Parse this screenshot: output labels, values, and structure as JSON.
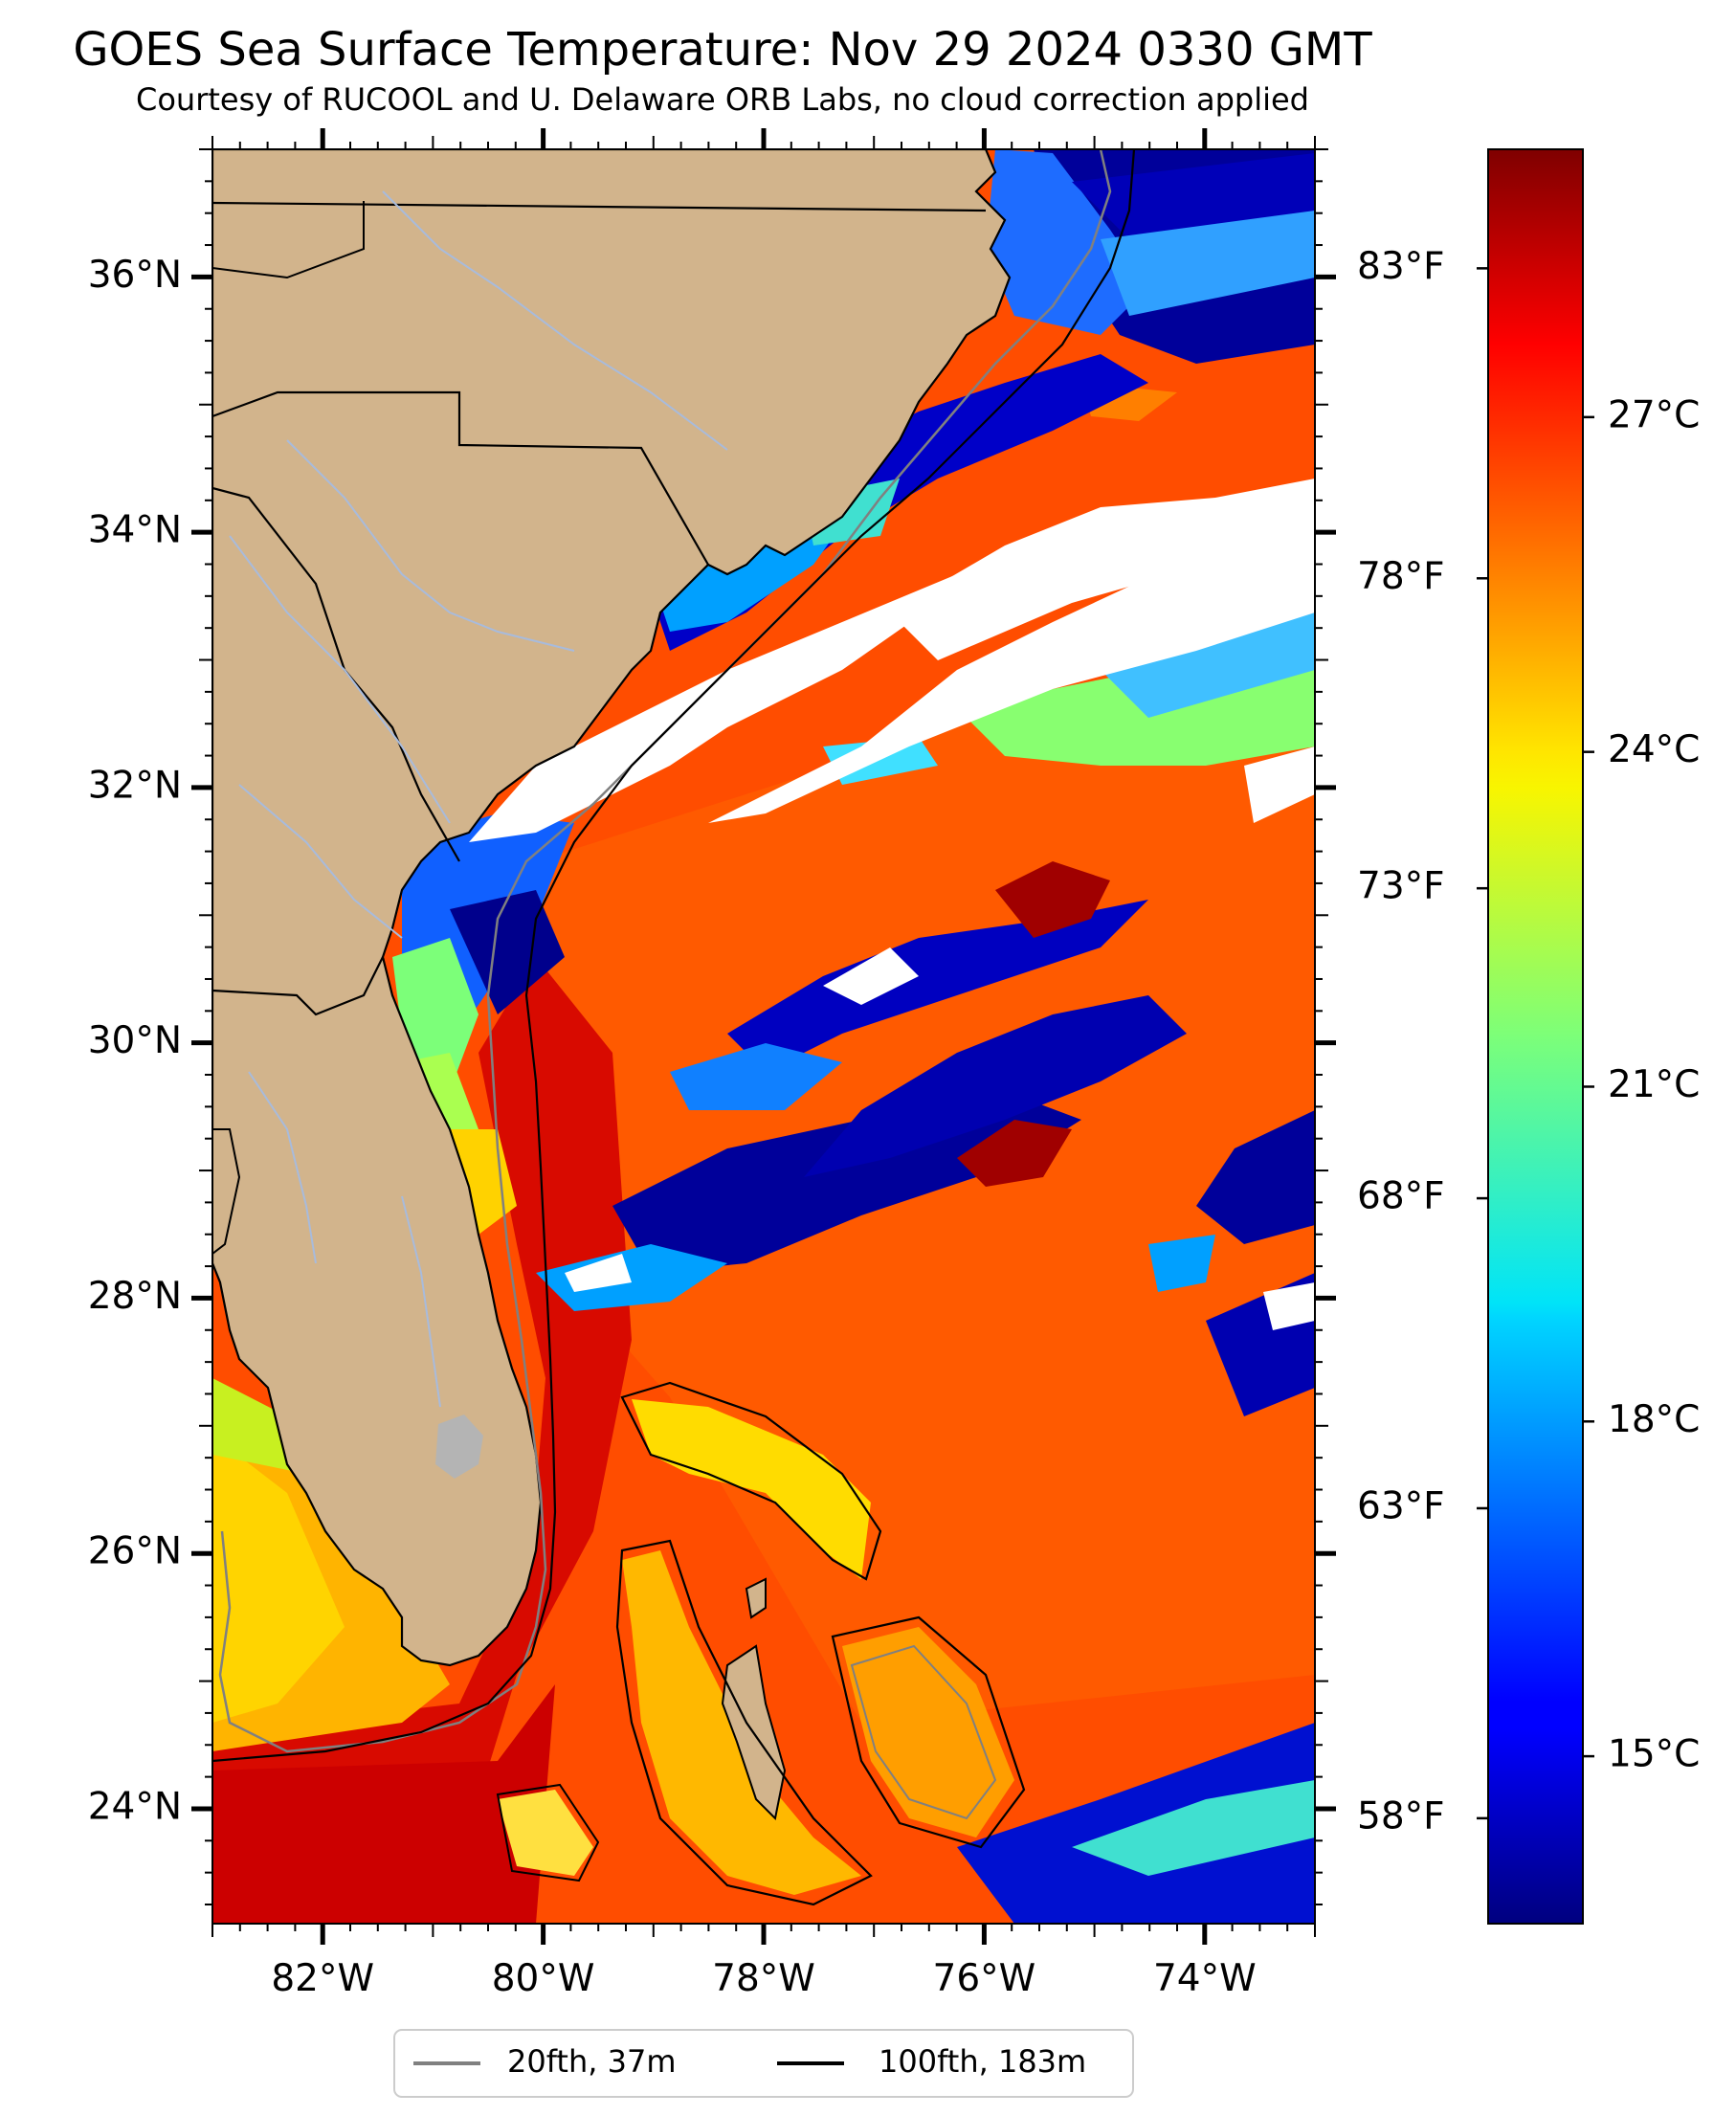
{
  "title": "GOES Sea Surface Temperature: Nov 29 2024 0330 GMT",
  "subtitle": "Courtesy of RUCOOL and U. Delaware ORB Labs, no cloud correction applied",
  "map": {
    "lon_range": [
      -83,
      -73
    ],
    "lat_range": [
      23.1,
      37
    ],
    "lat_ticks": [
      {
        "value": 36,
        "label": "36°N"
      },
      {
        "value": 34,
        "label": "34°N"
      },
      {
        "value": 32,
        "label": "32°N"
      },
      {
        "value": 30,
        "label": "30°N"
      },
      {
        "value": 28,
        "label": "28°N"
      },
      {
        "value": 26,
        "label": "26°N"
      },
      {
        "value": 24,
        "label": "24°N"
      }
    ],
    "lon_ticks": [
      {
        "value": -82,
        "label": "82°W"
      },
      {
        "value": -80,
        "label": "80°W"
      },
      {
        "value": -78,
        "label": "78°W"
      },
      {
        "value": -76,
        "label": "76°W"
      },
      {
        "value": -74,
        "label": "74°W"
      }
    ],
    "colors": {
      "land": "#d2b48c",
      "lake": "#b4b4b4",
      "river": "#a8bbdc",
      "cloud": "#ffffff",
      "warm_ocean": "#ff4a00",
      "gulf_stream": "#dd0a00",
      "cold_shelf": "#00009a"
    }
  },
  "colorbar": {
    "cmap": "jet",
    "range_c": [
      13.5,
      29.4
    ],
    "celsius_ticks": [
      {
        "value": 27,
        "label": "27°C"
      },
      {
        "value": 24,
        "label": "24°C"
      },
      {
        "value": 21,
        "label": "21°C"
      },
      {
        "value": 18,
        "label": "18°C"
      },
      {
        "value": 15,
        "label": "15°C"
      }
    ],
    "fahrenheit_ticks": [
      {
        "value": 83,
        "label": "83°F"
      },
      {
        "value": 78,
        "label": "78°F"
      },
      {
        "value": 73,
        "label": "73°F"
      },
      {
        "value": 68,
        "label": "68°F"
      },
      {
        "value": 63,
        "label": "63°F"
      },
      {
        "value": 58,
        "label": "58°F"
      }
    ]
  },
  "legend": {
    "placement": "bottom-center",
    "entries": [
      {
        "label": "20fth, 37m",
        "color": "#808080"
      },
      {
        "label": "100fth, 183m",
        "color": "#000000"
      }
    ]
  }
}
